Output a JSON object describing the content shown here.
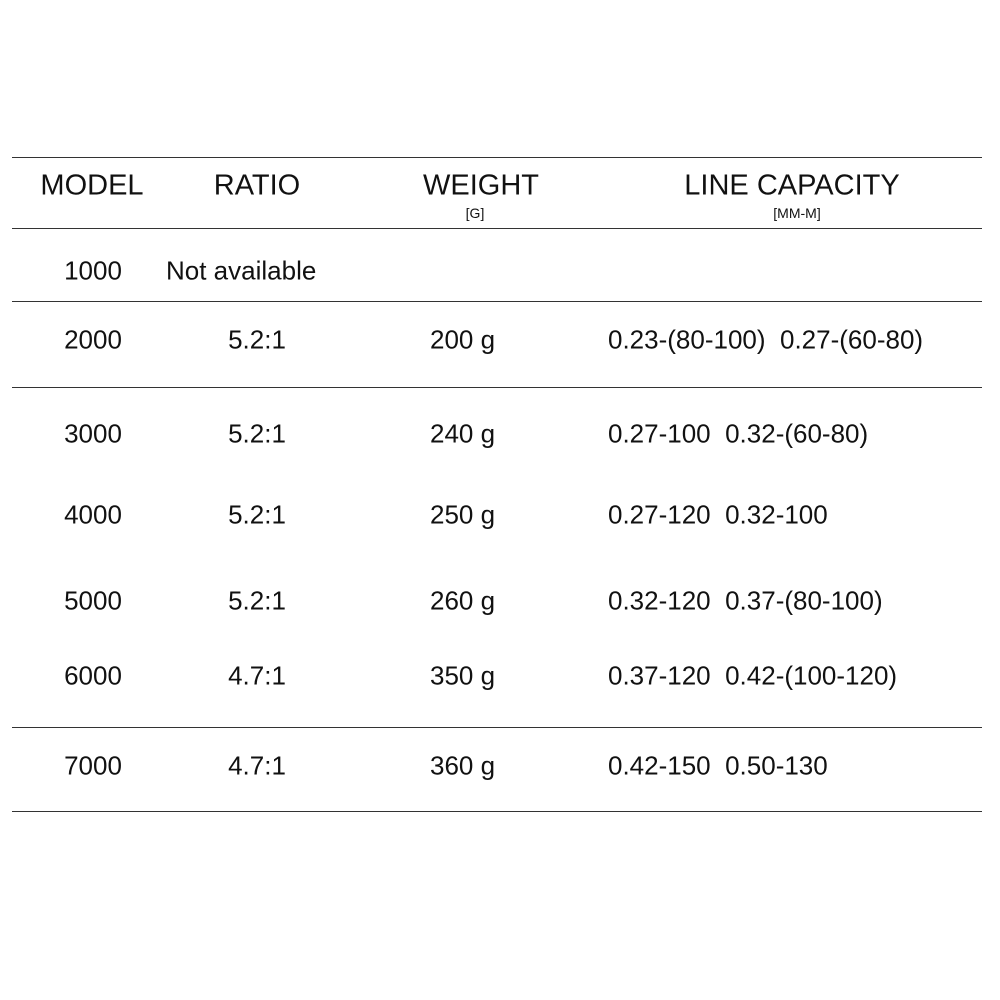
{
  "table": {
    "columns": [
      {
        "title": "MODEL"
      },
      {
        "title": "RATIO"
      },
      {
        "title": "WEIGHT",
        "unit": "[G]"
      },
      {
        "title": "LINE CAPACITY",
        "unit": "[MM-M]"
      }
    ],
    "rows": [
      {
        "model": "1000",
        "ratio": "Not available"
      },
      {
        "model": "2000",
        "ratio": "5.2:1",
        "weight": "200 g",
        "capacity": "0.23-(80-100)  0.27-(60-80)"
      },
      {
        "model": "3000",
        "ratio": "5.2:1",
        "weight": "240 g",
        "capacity": "0.27-100  0.32-(60-80)"
      },
      {
        "model": "4000",
        "ratio": "5.2:1",
        "weight": "250 g",
        "capacity": "0.27-120  0.32-100"
      },
      {
        "model": "5000",
        "ratio": "5.2:1",
        "weight": "260 g",
        "capacity": "0.32-120  0.37-(80-100)"
      },
      {
        "model": "6000",
        "ratio": "4.7:1",
        "weight": "350 g",
        "capacity": "0.37-120  0.42-(100-120)"
      },
      {
        "model": "7000",
        "ratio": "4.7:1",
        "weight": "360 g",
        "capacity": "0.42-150  0.50-130"
      }
    ]
  }
}
